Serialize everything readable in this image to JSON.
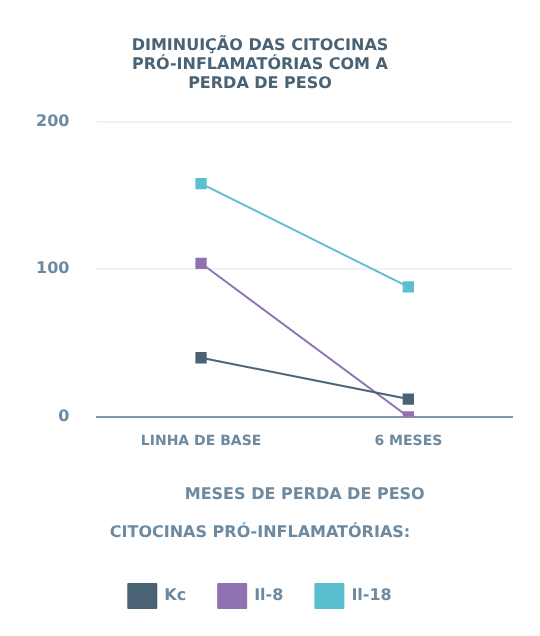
{
  "chart_data": {
    "type": "line",
    "title": "DIMINUIÇÃO DAS CITOCINAS PRÓ-INFLAMATÓRIAS COM A PERDA DE PESO",
    "xlabel": "MESES DE PERDA DE PESO",
    "legend_title": "CITOCINAS PRÓ-INFLAMATÓRIAS:",
    "categories": [
      "LINHA DE BASE",
      "6 MESES"
    ],
    "series": [
      {
        "name": "Kc",
        "color": "#4a6374",
        "values": [
          40,
          12
        ]
      },
      {
        "name": "Il-8",
        "color": "#8f72b0",
        "values": [
          104,
          0
        ]
      },
      {
        "name": "Il-18",
        "color": "#5bbfd0",
        "values": [
          158,
          88
        ]
      }
    ],
    "ylim": [
      0,
      200
    ],
    "yticks": [
      0,
      100,
      200
    ],
    "grid": "y",
    "legend": "bottom",
    "marker": "square",
    "line_style": "solid"
  }
}
